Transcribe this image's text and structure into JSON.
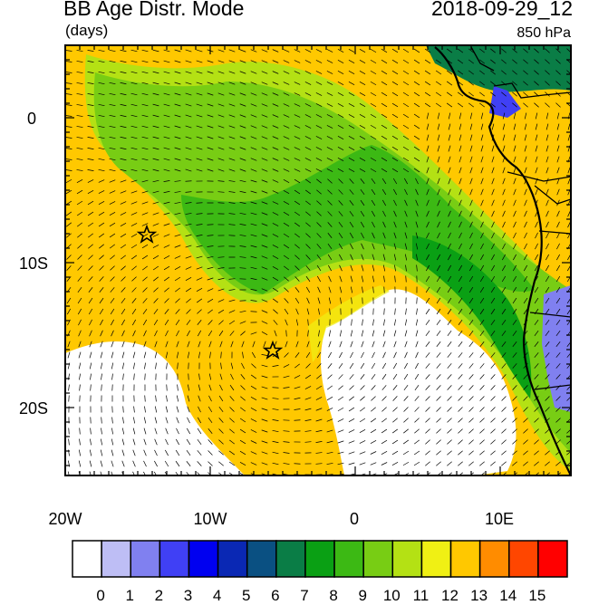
{
  "header": {
    "title": "BB Age Distr. Mode",
    "units": "(days)",
    "datetime": "2018-09-29_12",
    "level": "850 hPa"
  },
  "map": {
    "lon_labels": [
      "20W",
      "10W",
      "0",
      "10E"
    ],
    "lat_labels": [
      "0",
      "10S",
      "20S"
    ],
    "markers": [
      "star-marker",
      "star-marker"
    ]
  },
  "colorbar": {
    "values": [
      "0",
      "1",
      "2",
      "3",
      "4",
      "5",
      "6",
      "7",
      "8",
      "9",
      "10",
      "11",
      "12",
      "13",
      "14",
      "15"
    ],
    "colors": [
      "#ffffff",
      "#bebef5",
      "#8080f0",
      "#4040f5",
      "#0000f0",
      "#0a28b4",
      "#0a5082",
      "#0a7d46",
      "#0aa014",
      "#3cb914",
      "#78cd14",
      "#b4e114",
      "#f0f014",
      "#ffc800",
      "#ff8c00",
      "#ff4600",
      "#ff0000"
    ]
  },
  "palette": {
    "orange": "#ffc800",
    "yellow": "#f0f014",
    "yellow_green": "#b4e114",
    "lime": "#78cd14",
    "green": "#3cb914",
    "dark_green": "#0a7d46",
    "blue": "#8080f0",
    "white": "#ffffff"
  }
}
